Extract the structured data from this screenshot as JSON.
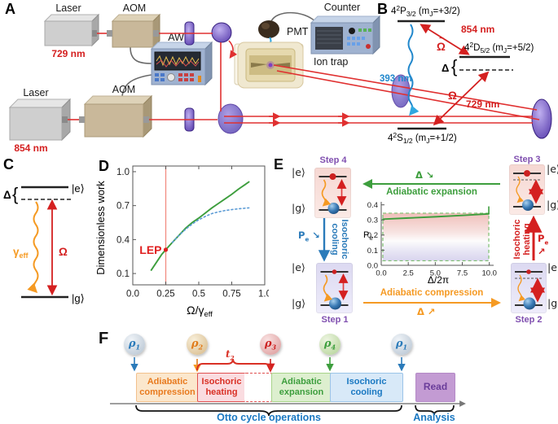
{
  "panels": {
    "a": "A",
    "b": "B",
    "c": "C",
    "d": "D",
    "e": "E",
    "f": "F"
  },
  "a": {
    "laser_top": "Laser",
    "laser_top_wl": "729 nm",
    "laser_bottom": "Laser",
    "laser_bottom_wl": "854 nm",
    "aom_top": "AOM",
    "aom_bottom": "AOM",
    "awg": "AWG",
    "counter": "Counter",
    "pmt": "PMT",
    "ion_trap": "Ion trap"
  },
  "b": {
    "p32": {
      "f0": "4",
      "f1": "2",
      "f2": "P",
      "f3": "3/2",
      "f4": " (m",
      "f5": "J",
      "f6": "=+3/2)"
    },
    "d52": {
      "f0": "4",
      "f1": "2",
      "f2": "D",
      "f3": "5/2",
      "f4": " (m",
      "f5": "J",
      "f6": "=+5/2)"
    },
    "s12": {
      "f0": "4",
      "f1": "2",
      "f2": "S",
      "f3": "1/2",
      "f4": " (m",
      "f5": "J",
      "f6": "=+1/2)"
    },
    "nm393": "393 nm",
    "nm854": "854 nm",
    "nm729": "729 nm",
    "omega": "Ω",
    "tilde": "~",
    "omega2": "Ω",
    "delta": "Δ",
    "brace": "{"
  },
  "c": {
    "delta": "Δ",
    "brace": "{",
    "ket_e": "|e⟩",
    "ket_g": "|g⟩",
    "gamma": "γ",
    "gamma_sub": "eff",
    "omega": "Ω"
  },
  "e": {
    "step1": "Step 1",
    "step2": "Step 2",
    "step3": "Step 3",
    "step4": "Step 4",
    "ket_e": "|e⟩",
    "ket_g": "|g⟩",
    "expansion": "Adiabatic expansion",
    "compression": "Adiabatic compression",
    "cooling_l1": "Isochoric",
    "cooling_l2": "cooling",
    "heating_l1": "Isochoric",
    "heating_l2": "heating",
    "delta": "Δ",
    "arr_se": "↘",
    "arr_ne": "↗",
    "pe": "P",
    "pe_sub": "e",
    "colors": {
      "expansion": "#3d9e3d",
      "compression": "#f59a23",
      "cooling": "#2b7bba",
      "heating": "#d42020",
      "step": "#8050b0"
    }
  },
  "f": {
    "states": [
      {
        "base": "ρ",
        "sub": "1",
        "color": "#2b7bba"
      },
      {
        "base": "ρ",
        "sub": "2",
        "color": "#e07b1a"
      },
      {
        "base": "ρ",
        "sub": "3",
        "color": "#cc2222"
      },
      {
        "base": "ρ",
        "sub": "4",
        "color": "#3d9e3d"
      },
      {
        "base": "ρ",
        "sub": "1",
        "color": "#2b7bba"
      }
    ],
    "t2": {
      "base": "t",
      "sub": "2",
      "color": "#d93025"
    },
    "phases": [
      {
        "l1": "Adiabatic",
        "l2": "compression",
        "bg": "#fbe7cd",
        "border": "#f2c18d",
        "color": "#e87a1e"
      },
      {
        "l1": "Isochoric",
        "l2": "heating",
        "bg": "#fadce0",
        "border": "#e05050",
        "color": "#d93025"
      },
      {
        "l1": "Adiabatic",
        "l2": "expansion",
        "bg": "#ddefcf",
        "border": "#a8d48a",
        "color": "#3d9e3d"
      },
      {
        "l1": "Isochoric",
        "l2": "cooling",
        "bg": "#d8e9f8",
        "border": "#9cc4e8",
        "color": "#1a78c2"
      }
    ],
    "read": "Read",
    "read_bg": "#c39bd3",
    "read_color": "#6a3d9a",
    "otto": "Otto cycle operations",
    "analysis": "Analysis",
    "label_color": "#1a78c2"
  },
  "chart_data": [
    {
      "id": "panel-d-chart",
      "type": "line",
      "title": "",
      "xlabel_main": "Ω/γ",
      "xlabel_sub": "eff",
      "ylabel": "Dimensionless work",
      "xlim": [
        0,
        1.0
      ],
      "ylim": [
        0,
        1.05
      ],
      "grid": false,
      "frame": true,
      "legend": "none",
      "xtick_values": [
        0,
        0.25,
        0.5,
        0.75,
        1.0
      ],
      "xtick_labels": [
        "0.0",
        "0.25",
        "0.5",
        "0.75",
        "1.0"
      ],
      "ytick_values": [
        0.1,
        0.4,
        0.7,
        1.0
      ],
      "ytick_labels": [
        "0.1",
        "0.4",
        "0.7",
        "1.0"
      ],
      "vline": {
        "x": 0.25,
        "color": "#f28b82"
      },
      "series": [
        {
          "name": "work (solid green)",
          "color": "#3d9e3d",
          "style": "solid",
          "x": [
            0.14,
            0.18,
            0.22,
            0.25,
            0.28,
            0.32,
            0.36,
            0.4,
            0.45,
            0.5,
            0.55,
            0.6,
            0.65,
            0.7,
            0.75,
            0.8,
            0.85,
            0.88
          ],
          "y": [
            0.13,
            0.2,
            0.27,
            0.31,
            0.35,
            0.4,
            0.45,
            0.5,
            0.55,
            0.59,
            0.635,
            0.68,
            0.72,
            0.76,
            0.8,
            0.845,
            0.885,
            0.91
          ]
        },
        {
          "name": "work (dotted blue)",
          "color": "#5b9bd5",
          "style": "dotted",
          "x": [
            0.3,
            0.34,
            0.38,
            0.42,
            0.46,
            0.5,
            0.55,
            0.6,
            0.65,
            0.7,
            0.75,
            0.8,
            0.85,
            0.88
          ],
          "y": [
            0.375,
            0.425,
            0.47,
            0.51,
            0.545,
            0.575,
            0.605,
            0.63,
            0.645,
            0.657,
            0.665,
            0.672,
            0.677,
            0.68
          ]
        }
      ],
      "annotations": [
        {
          "label": "LEP",
          "x": 0.25,
          "y": 0.31,
          "color": "#e02020"
        }
      ]
    },
    {
      "id": "panel-e-inset",
      "type": "line",
      "xlabel": "Δ/2π",
      "ylabel_main": "P",
      "ylabel_sub": "e",
      "xlim": [
        0,
        10.4
      ],
      "ylim": [
        0,
        0.42
      ],
      "grid": false,
      "frame": false,
      "xtick_values": [
        0,
        2.5,
        5,
        7.5,
        10
      ],
      "xtick_labels": [
        "0.0",
        "2.5",
        "5.0",
        "7.5",
        "10.0"
      ],
      "ytick_values": [
        0,
        0.1,
        0.2,
        0.3,
        0.4
      ],
      "ytick_labels": [
        "0.0",
        "0.1",
        "0.2",
        "0.3",
        "0.4"
      ],
      "series": [
        {
          "name": "Pe along expansion",
          "color": "#3d9e3d",
          "style": "solid",
          "x": [
            0.15,
            2.5,
            5.0,
            7.5,
            9.95
          ],
          "y": [
            0.305,
            0.313,
            0.321,
            0.33,
            0.34
          ]
        }
      ],
      "edge_line": {
        "x": 9.95,
        "y0": 0.34,
        "y1": 0.39,
        "color": "#3d9e3d"
      },
      "cycle_box": {
        "x0": 0.15,
        "x1": 9.95,
        "y0": 0.03,
        "y1": 0.345,
        "border_color": "#7cbf6e"
      }
    }
  ]
}
